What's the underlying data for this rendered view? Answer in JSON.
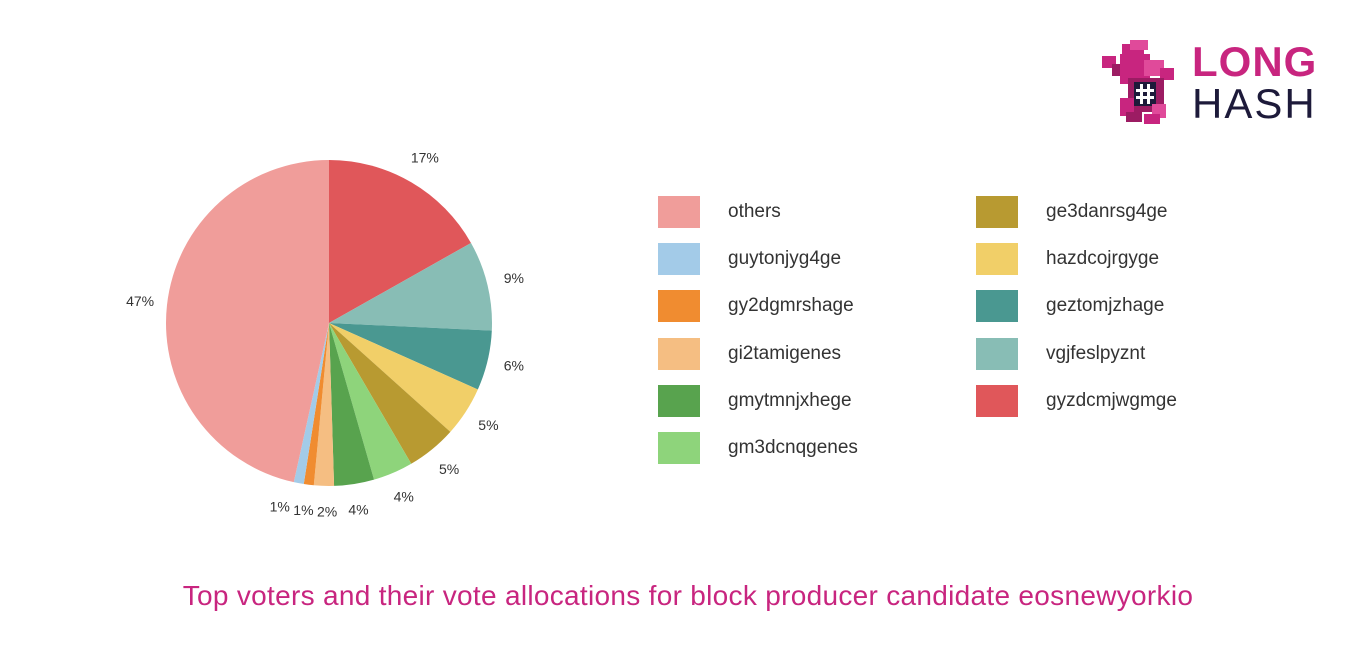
{
  "chart_data": {
    "type": "pie",
    "title": "Top voters and their vote allocations for block producer candidate eosnewyorkio",
    "slices": [
      {
        "name": "gyzdcmjwgmge",
        "value": 17,
        "label": "17%",
        "color": "#e0575a"
      },
      {
        "name": "vgjfeslpyznt",
        "value": 9,
        "label": "9%",
        "color": "#88bdb5"
      },
      {
        "name": "geztomjzhage",
        "value": 6,
        "label": "6%",
        "color": "#4a9891"
      },
      {
        "name": "hazdcojrgyge",
        "value": 5,
        "label": "5%",
        "color": "#f1cf68"
      },
      {
        "name": "ge3danrsg4ge",
        "value": 5,
        "label": "5%",
        "color": "#b89a31"
      },
      {
        "name": "gm3dcnqgenes",
        "value": 4,
        "label": "4%",
        "color": "#8ed47b"
      },
      {
        "name": "gmytmnjxhege",
        "value": 4,
        "label": "4%",
        "color": "#58a34e"
      },
      {
        "name": "gi2tamigenes",
        "value": 2,
        "label": "2%",
        "color": "#f5be82"
      },
      {
        "name": "gy2dgmrshage",
        "value": 1,
        "label": "1%",
        "color": "#f08c30"
      },
      {
        "name": "guytonjyg4ge",
        "value": 1,
        "label": "1%",
        "color": "#a3cbe8"
      },
      {
        "name": "others",
        "value": 47,
        "label": "47%",
        "color": "#f09d9a"
      }
    ],
    "legend_position": "right",
    "legend_columns": [
      [
        "others",
        "guytonjyg4ge",
        "gy2dgmrshage",
        "gi2tamigenes",
        "gmytmnjxhege",
        "gm3dcnqgenes"
      ],
      [
        "ge3danrsg4ge",
        "hazdcojrgyge",
        "geztomjzhage",
        "vgjfeslpyznt",
        "gyzdcmjwgmge"
      ]
    ]
  },
  "caption": "Top voters and their vote allocations for block producer candidate eosnewyorkio",
  "logo": {
    "line1": "LONG",
    "line2": "HASH",
    "accent_color": "#c8257f",
    "dark_color": "#1d1a3a",
    "icon": "pixel-dinosaur-hash-icon"
  }
}
